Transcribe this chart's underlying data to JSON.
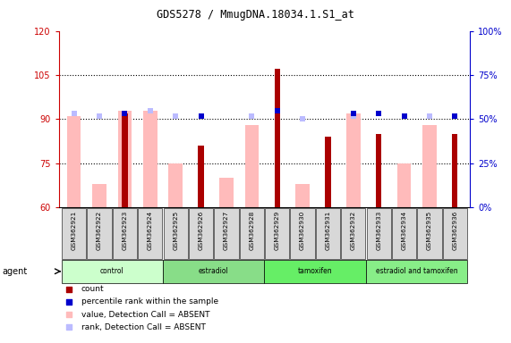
{
  "title": "GDS5278 / MmugDNA.18034.1.S1_at",
  "samples": [
    "GSM362921",
    "GSM362922",
    "GSM362923",
    "GSM362924",
    "GSM362925",
    "GSM362926",
    "GSM362927",
    "GSM362928",
    "GSM362929",
    "GSM362930",
    "GSM362931",
    "GSM362932",
    "GSM362933",
    "GSM362934",
    "GSM362935",
    "GSM362936"
  ],
  "count_values": [
    null,
    null,
    92,
    null,
    null,
    81,
    null,
    null,
    107,
    null,
    84,
    null,
    85,
    null,
    null,
    85
  ],
  "rank_values": [
    null,
    null,
    92,
    null,
    null,
    91,
    null,
    null,
    93,
    null,
    null,
    92,
    92,
    91,
    null,
    91
  ],
  "value_absent": [
    91,
    68,
    93,
    93,
    75,
    null,
    70,
    88,
    null,
    68,
    null,
    92,
    null,
    75,
    88,
    null
  ],
  "rank_absent": [
    92,
    91,
    92,
    93,
    91,
    91,
    null,
    91,
    93,
    90,
    null,
    91,
    null,
    null,
    91,
    91
  ],
  "ylim_left": [
    60,
    120
  ],
  "ylim_right": [
    0,
    100
  ],
  "yticks_left": [
    60,
    75,
    90,
    105,
    120
  ],
  "yticks_right": [
    0,
    25,
    50,
    75,
    100
  ],
  "groups": [
    {
      "label": "control",
      "start": 0,
      "end": 3
    },
    {
      "label": "estradiol",
      "start": 4,
      "end": 7
    },
    {
      "label": "tamoxifen",
      "start": 8,
      "end": 11
    },
    {
      "label": "estradiol and tamoxifen",
      "start": 12,
      "end": 15
    }
  ],
  "group_colors": [
    "#ccffcc",
    "#88dd88",
    "#66ee66",
    "#88ee88"
  ],
  "count_color": "#aa0000",
  "rank_color": "#0000cc",
  "value_absent_color": "#ffbbbb",
  "rank_absent_color": "#bbbbff",
  "xlabel_color": "#cc0000",
  "ylabel_right_color": "#0000cc",
  "ytick_gridlines": [
    75,
    90,
    105
  ]
}
